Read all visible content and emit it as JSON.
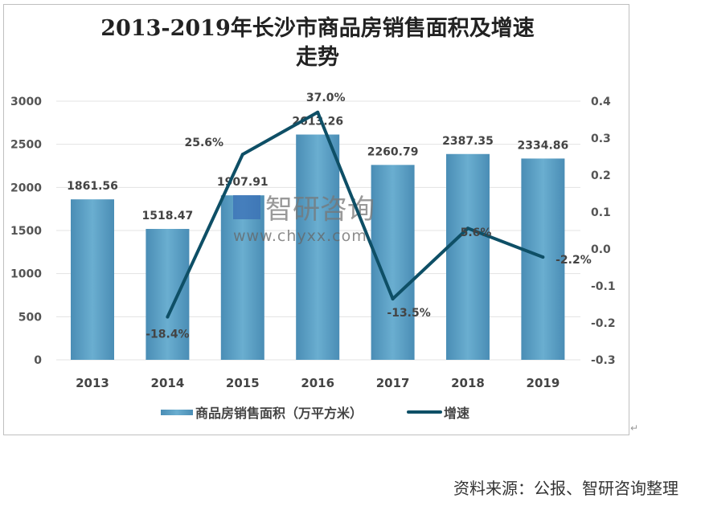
{
  "chart_data": {
    "type": "bar+line",
    "title": "2013-2019年长沙市商品房销售面积及增速走势",
    "categories": [
      "2013",
      "2014",
      "2015",
      "2016",
      "2017",
      "2018",
      "2019"
    ],
    "series": [
      {
        "name": "商品房销售面积（万平方米）",
        "type": "bar",
        "axis": "left",
        "values": [
          1861.56,
          1518.47,
          1907.91,
          2613.26,
          2260.79,
          2387.35,
          2334.86
        ],
        "labels": [
          "1861.56",
          "1518.47",
          "1907.91",
          "2613.26",
          "2260.79",
          "2387.35",
          "2334.86"
        ],
        "color": "#5b9bc0"
      },
      {
        "name": "增速",
        "type": "line",
        "axis": "right",
        "values": [
          null,
          -0.184,
          0.256,
          0.37,
          -0.135,
          0.056,
          -0.022
        ],
        "labels": [
          "",
          "-18.4%",
          "25.6%",
          "37.0%",
          "-13.5%",
          "5.6%",
          "-2.2%"
        ],
        "color": "#0e4f66"
      }
    ],
    "ylim_left": [
      0,
      3000
    ],
    "yticks_left": [
      "0",
      "500",
      "1000",
      "1500",
      "2000",
      "2500",
      "3000"
    ],
    "ylim_right": [
      -0.3,
      0.4
    ],
    "yticks_right": [
      "-0.3",
      "-0.2",
      "-0.1",
      "0.0",
      "0.1",
      "0.2",
      "0.3",
      "0.4"
    ],
    "grid": true,
    "legend": "bottom"
  },
  "watermark": {
    "name": "智研咨询",
    "url": "www.chyxx.com"
  },
  "source": "资料来源：公报、智研咨询整理",
  "return_mark": "↵"
}
